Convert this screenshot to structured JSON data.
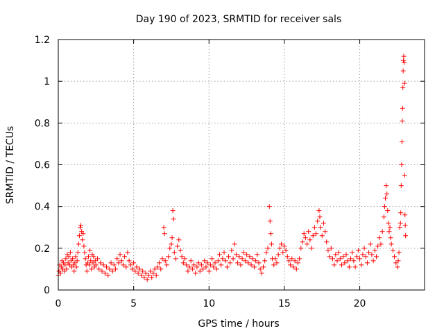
{
  "chart_data": {
    "type": "scatter",
    "title": "Day 190 of 2023, SRMTID for receiver sals",
    "xlabel": "GPS time / hours",
    "ylabel": "SRMTID / TECUs",
    "xlim": [
      0,
      24.3
    ],
    "ylim": [
      0,
      1.2
    ],
    "xticks": [
      0,
      5,
      10,
      15,
      20
    ],
    "xtick_labels": [
      "0",
      "5",
      "10",
      "15",
      "20"
    ],
    "yticks": [
      0,
      0.2,
      0.4,
      0.6,
      0.8,
      1.0,
      1.2
    ],
    "ytick_labels": [
      "0",
      "0.2",
      "0.4",
      "0.6",
      "0.8",
      "1",
      "1.2"
    ],
    "grid": true,
    "marker": "+",
    "series": [
      {
        "name": "SRMTID",
        "color": "#ff0000",
        "points": [
          [
            0.0,
            0.07
          ],
          [
            0.05,
            0.09
          ],
          [
            0.1,
            0.12
          ],
          [
            0.15,
            0.08
          ],
          [
            0.2,
            0.11
          ],
          [
            0.25,
            0.14
          ],
          [
            0.3,
            0.1
          ],
          [
            0.35,
            0.13
          ],
          [
            0.4,
            0.09
          ],
          [
            0.45,
            0.12
          ],
          [
            0.5,
            0.15
          ],
          [
            0.55,
            0.1
          ],
          [
            0.6,
            0.17
          ],
          [
            0.65,
            0.13
          ],
          [
            0.7,
            0.16
          ],
          [
            0.75,
            0.12
          ],
          [
            0.8,
            0.18
          ],
          [
            0.85,
            0.14
          ],
          [
            0.9,
            0.11
          ],
          [
            0.95,
            0.15
          ],
          [
            1.0,
            0.12
          ],
          [
            1.05,
            0.09
          ],
          [
            1.1,
            0.13
          ],
          [
            1.15,
            0.16
          ],
          [
            1.2,
            0.11
          ],
          [
            1.25,
            0.14
          ],
          [
            1.3,
            0.18
          ],
          [
            1.35,
            0.22
          ],
          [
            1.4,
            0.26
          ],
          [
            1.45,
            0.3
          ],
          [
            1.5,
            0.31
          ],
          [
            1.55,
            0.28
          ],
          [
            1.6,
            0.24
          ],
          [
            1.65,
            0.27
          ],
          [
            1.7,
            0.21
          ],
          [
            1.75,
            0.18
          ],
          [
            1.8,
            0.15
          ],
          [
            1.85,
            0.12
          ],
          [
            1.9,
            0.09
          ],
          [
            1.95,
            0.13
          ],
          [
            2.0,
            0.16
          ],
          [
            2.05,
            0.12
          ],
          [
            2.1,
            0.19
          ],
          [
            2.15,
            0.14
          ],
          [
            2.2,
            0.1
          ],
          [
            2.25,
            0.17
          ],
          [
            2.3,
            0.13
          ],
          [
            2.35,
            0.16
          ],
          [
            2.4,
            0.11
          ],
          [
            2.45,
            0.14
          ],
          [
            2.5,
            0.12
          ],
          [
            2.6,
            0.15
          ],
          [
            2.7,
            0.1
          ],
          [
            2.8,
            0.13
          ],
          [
            2.9,
            0.09
          ],
          [
            3.0,
            0.12
          ],
          [
            3.1,
            0.08
          ],
          [
            3.2,
            0.11
          ],
          [
            3.3,
            0.07
          ],
          [
            3.4,
            0.1
          ],
          [
            3.5,
            0.13
          ],
          [
            3.6,
            0.09
          ],
          [
            3.7,
            0.12
          ],
          [
            3.8,
            0.1
          ],
          [
            3.9,
            0.15
          ],
          [
            4.0,
            0.13
          ],
          [
            4.1,
            0.17
          ],
          [
            4.2,
            0.14
          ],
          [
            4.3,
            0.12
          ],
          [
            4.4,
            0.16
          ],
          [
            4.5,
            0.11
          ],
          [
            4.6,
            0.18
          ],
          [
            4.7,
            0.14
          ],
          [
            4.8,
            0.12
          ],
          [
            4.9,
            0.1
          ],
          [
            5.0,
            0.13
          ],
          [
            5.1,
            0.09
          ],
          [
            5.2,
            0.11
          ],
          [
            5.3,
            0.08
          ],
          [
            5.4,
            0.1
          ],
          [
            5.5,
            0.07
          ],
          [
            5.6,
            0.09
          ],
          [
            5.7,
            0.06
          ],
          [
            5.8,
            0.08
          ],
          [
            5.9,
            0.05
          ],
          [
            6.0,
            0.07
          ],
          [
            6.1,
            0.09
          ],
          [
            6.2,
            0.06
          ],
          [
            6.3,
            0.08
          ],
          [
            6.4,
            0.1
          ],
          [
            6.5,
            0.07
          ],
          [
            6.6,
            0.11
          ],
          [
            6.7,
            0.13
          ],
          [
            6.8,
            0.1
          ],
          [
            6.9,
            0.15
          ],
          [
            7.0,
            0.3
          ],
          [
            7.05,
            0.27
          ],
          [
            7.1,
            0.14
          ],
          [
            7.2,
            0.12
          ],
          [
            7.3,
            0.16
          ],
          [
            7.4,
            0.2
          ],
          [
            7.5,
            0.22
          ],
          [
            7.55,
            0.25
          ],
          [
            7.6,
            0.38
          ],
          [
            7.65,
            0.34
          ],
          [
            7.7,
            0.18
          ],
          [
            7.8,
            0.15
          ],
          [
            7.9,
            0.21
          ],
          [
            8.0,
            0.24
          ],
          [
            8.1,
            0.19
          ],
          [
            8.2,
            0.16
          ],
          [
            8.3,
            0.13
          ],
          [
            8.4,
            0.15
          ],
          [
            8.5,
            0.12
          ],
          [
            8.6,
            0.09
          ],
          [
            8.7,
            0.11
          ],
          [
            8.8,
            0.14
          ],
          [
            8.9,
            0.1
          ],
          [
            9.0,
            0.12
          ],
          [
            9.1,
            0.08
          ],
          [
            9.2,
            0.11
          ],
          [
            9.3,
            0.13
          ],
          [
            9.4,
            0.09
          ],
          [
            9.5,
            0.12
          ],
          [
            9.6,
            0.1
          ],
          [
            9.7,
            0.14
          ],
          [
            9.8,
            0.11
          ],
          [
            9.9,
            0.13
          ],
          [
            10.0,
            0.09
          ],
          [
            10.1,
            0.12
          ],
          [
            10.2,
            0.15
          ],
          [
            10.3,
            0.11
          ],
          [
            10.4,
            0.13
          ],
          [
            10.5,
            0.1
          ],
          [
            10.6,
            0.14
          ],
          [
            10.7,
            0.17
          ],
          [
            10.8,
            0.12
          ],
          [
            10.9,
            0.15
          ],
          [
            11.0,
            0.18
          ],
          [
            11.1,
            0.14
          ],
          [
            11.2,
            0.11
          ],
          [
            11.3,
            0.16
          ],
          [
            11.4,
            0.13
          ],
          [
            11.5,
            0.19
          ],
          [
            11.6,
            0.15
          ],
          [
            11.7,
            0.22
          ],
          [
            11.8,
            0.17
          ],
          [
            11.9,
            0.13
          ],
          [
            12.0,
            0.16
          ],
          [
            12.1,
            0.12
          ],
          [
            12.2,
            0.15
          ],
          [
            12.3,
            0.18
          ],
          [
            12.4,
            0.14
          ],
          [
            12.5,
            0.17
          ],
          [
            12.6,
            0.13
          ],
          [
            12.7,
            0.16
          ],
          [
            12.8,
            0.12
          ],
          [
            12.9,
            0.15
          ],
          [
            13.0,
            0.11
          ],
          [
            13.1,
            0.14
          ],
          [
            13.2,
            0.17
          ],
          [
            13.3,
            0.13
          ],
          [
            13.4,
            0.1
          ],
          [
            13.5,
            0.08
          ],
          [
            13.6,
            0.11
          ],
          [
            13.7,
            0.14
          ],
          [
            13.8,
            0.18
          ],
          [
            13.9,
            0.2
          ],
          [
            14.0,
            0.4
          ],
          [
            14.05,
            0.33
          ],
          [
            14.1,
            0.27
          ],
          [
            14.15,
            0.22
          ],
          [
            14.2,
            0.15
          ],
          [
            14.3,
            0.12
          ],
          [
            14.4,
            0.15
          ],
          [
            14.5,
            0.13
          ],
          [
            14.6,
            0.17
          ],
          [
            14.7,
            0.2
          ],
          [
            14.8,
            0.22
          ],
          [
            14.9,
            0.18
          ],
          [
            15.0,
            0.21
          ],
          [
            15.1,
            0.19
          ],
          [
            15.2,
            0.16
          ],
          [
            15.3,
            0.14
          ],
          [
            15.4,
            0.12
          ],
          [
            15.5,
            0.15
          ],
          [
            15.6,
            0.11
          ],
          [
            15.7,
            0.14
          ],
          [
            15.8,
            0.1
          ],
          [
            15.9,
            0.13
          ],
          [
            16.0,
            0.15
          ],
          [
            16.1,
            0.2
          ],
          [
            16.2,
            0.23
          ],
          [
            16.3,
            0.27
          ],
          [
            16.4,
            0.25
          ],
          [
            16.5,
            0.22
          ],
          [
            16.6,
            0.28
          ],
          [
            16.7,
            0.24
          ],
          [
            16.8,
            0.2
          ],
          [
            16.9,
            0.26
          ],
          [
            17.0,
            0.3
          ],
          [
            17.1,
            0.27
          ],
          [
            17.2,
            0.33
          ],
          [
            17.3,
            0.38
          ],
          [
            17.35,
            0.35
          ],
          [
            17.4,
            0.3
          ],
          [
            17.5,
            0.26
          ],
          [
            17.6,
            0.32
          ],
          [
            17.7,
            0.28
          ],
          [
            17.8,
            0.23
          ],
          [
            17.9,
            0.19
          ],
          [
            18.0,
            0.16
          ],
          [
            18.1,
            0.2
          ],
          [
            18.2,
            0.15
          ],
          [
            18.3,
            0.12
          ],
          [
            18.4,
            0.17
          ],
          [
            18.5,
            0.14
          ],
          [
            18.6,
            0.18
          ],
          [
            18.7,
            0.15
          ],
          [
            18.8,
            0.12
          ],
          [
            18.9,
            0.16
          ],
          [
            19.0,
            0.13
          ],
          [
            19.1,
            0.17
          ],
          [
            19.2,
            0.14
          ],
          [
            19.3,
            0.11
          ],
          [
            19.4,
            0.15
          ],
          [
            19.5,
            0.18
          ],
          [
            19.6,
            0.14
          ],
          [
            19.7,
            0.11
          ],
          [
            19.8,
            0.16
          ],
          [
            19.9,
            0.19
          ],
          [
            20.0,
            0.15
          ],
          [
            20.1,
            0.12
          ],
          [
            20.2,
            0.17
          ],
          [
            20.3,
            0.2
          ],
          [
            20.4,
            0.16
          ],
          [
            20.5,
            0.13
          ],
          [
            20.6,
            0.18
          ],
          [
            20.7,
            0.22
          ],
          [
            20.8,
            0.17
          ],
          [
            20.9,
            0.14
          ],
          [
            21.0,
            0.19
          ],
          [
            21.1,
            0.16
          ],
          [
            21.2,
            0.21
          ],
          [
            21.3,
            0.25
          ],
          [
            21.4,
            0.22
          ],
          [
            21.5,
            0.28
          ],
          [
            21.6,
            0.35
          ],
          [
            21.65,
            0.4
          ],
          [
            21.7,
            0.44
          ],
          [
            21.75,
            0.5
          ],
          [
            21.8,
            0.46
          ],
          [
            21.85,
            0.38
          ],
          [
            21.9,
            0.32
          ],
          [
            21.95,
            0.28
          ],
          [
            22.0,
            0.3
          ],
          [
            22.05,
            0.25
          ],
          [
            22.1,
            0.22
          ],
          [
            22.2,
            0.19
          ],
          [
            22.3,
            0.16
          ],
          [
            22.4,
            0.13
          ],
          [
            22.5,
            0.11
          ],
          [
            22.55,
            0.14
          ],
          [
            22.6,
            0.18
          ],
          [
            22.65,
            0.3
          ],
          [
            22.7,
            0.32
          ],
          [
            22.72,
            0.37
          ],
          [
            22.75,
            0.5
          ],
          [
            22.78,
            0.6
          ],
          [
            22.8,
            0.71
          ],
          [
            22.82,
            0.81
          ],
          [
            22.84,
            0.87
          ],
          [
            22.86,
            0.97
          ],
          [
            22.88,
            1.05
          ],
          [
            22.9,
            1.1
          ],
          [
            22.92,
            1.12
          ],
          [
            22.94,
            1.09
          ],
          [
            22.96,
            0.99
          ],
          [
            22.98,
            0.55
          ],
          [
            23.0,
            0.36
          ],
          [
            23.02,
            0.31
          ],
          [
            23.04,
            0.26
          ]
        ]
      }
    ]
  }
}
